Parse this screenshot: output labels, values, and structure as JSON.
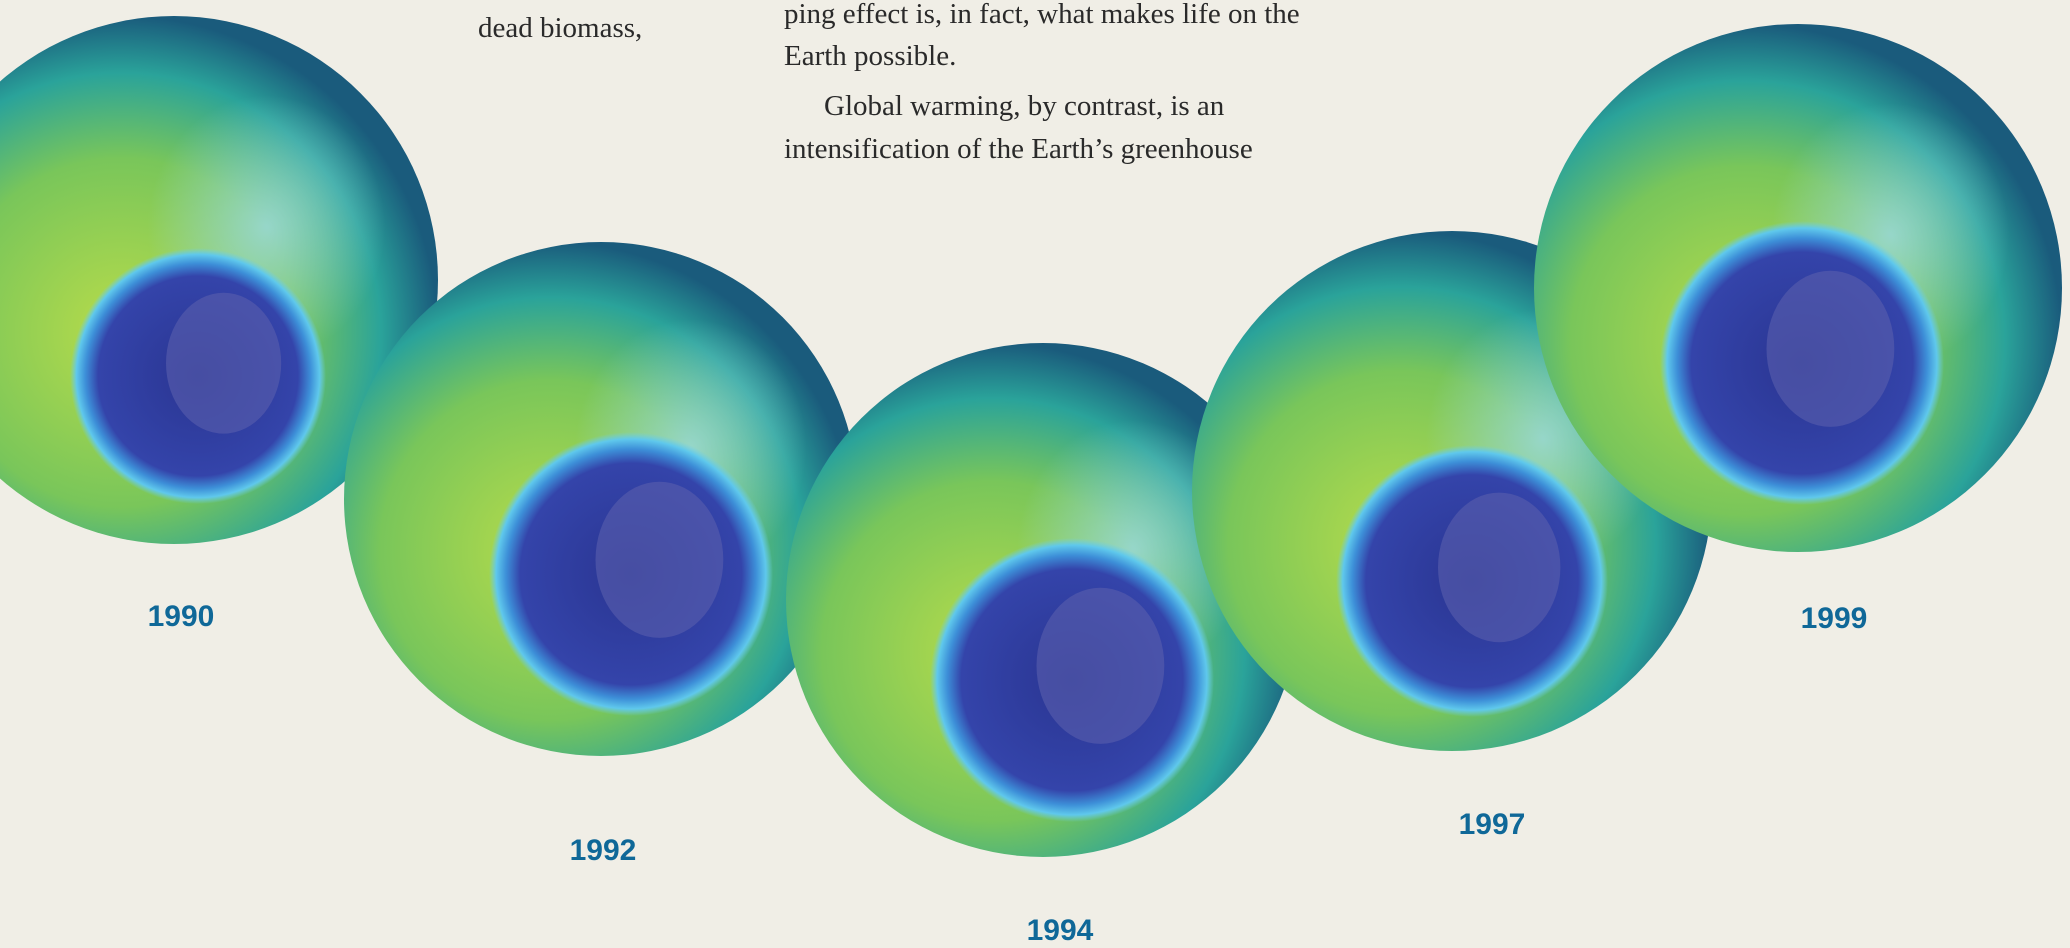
{
  "text": {
    "left_fragment": "dead biomass,",
    "paragraph_1": [
      "ping effect is, in fact, what makes life on the",
      "Earth possible."
    ],
    "paragraph_2": [
      "Global warming, by contrast, is an",
      "intensification of the Earth’s greenhouse"
    ]
  },
  "globes": [
    {
      "label": "1990"
    },
    {
      "label": "1992"
    },
    {
      "label": "1994"
    },
    {
      "label": "1997"
    },
    {
      "label": "1999"
    }
  ]
}
